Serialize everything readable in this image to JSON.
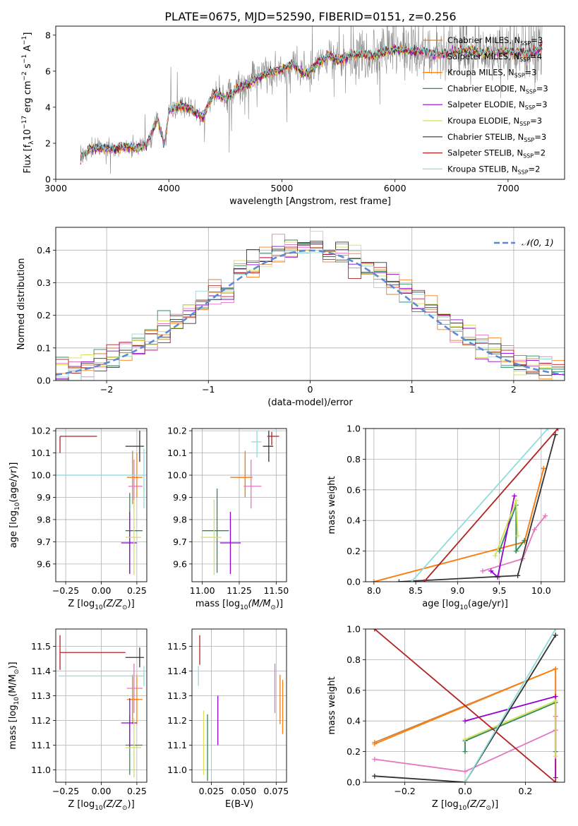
{
  "figure": {
    "title": "PLATE=0675, MJD=52590, FIBERID=0151, z=0.256"
  },
  "colors": [
    "#cd853f",
    "#e377c2",
    "#ff7f0e",
    "#2e8b57",
    "#9400d3",
    "#d4e157",
    "#333333",
    "#b22222",
    "#8fdcdc"
  ],
  "chart_data": [
    {
      "id": "spectrum",
      "type": "line",
      "xlabel": "wavelength [Angstrom, rest frame]",
      "ylabel": "Flux [f",
      "ylabel_sub": "λ",
      "ylabel_rest": "10",
      "ylabel_exp1": "−17",
      "ylabel_tail": " erg cm",
      "ylabel_exp2": "−2",
      "ylabel_s": " s",
      "ylabel_exp3": "−1",
      "ylabel_A": " A",
      "ylabel_exp4": "−1",
      "ylabel_end": "]",
      "xlim": [
        3000,
        7500
      ],
      "ylim": [
        0,
        8.5
      ],
      "xticks": [
        3000,
        4000,
        5000,
        6000,
        7000
      ],
      "yticks": [
        0,
        2,
        4,
        6,
        8
      ],
      "spectrum_anchors": {
        "x": [
          3220,
          3300,
          3400,
          3500,
          3600,
          3700,
          3800,
          3850,
          3900,
          3960,
          4000,
          4100,
          4200,
          4300,
          4400,
          4500,
          4600,
          4700,
          4800,
          4900,
          5000,
          5100,
          5200,
          5300,
          5400,
          5500,
          5600,
          5700,
          5800,
          5900,
          6000,
          6200,
          6400,
          6600,
          6800,
          7000,
          7200,
          7300
        ],
        "y": [
          1.2,
          1.7,
          1.75,
          1.65,
          1.8,
          1.75,
          1.9,
          2.6,
          3.4,
          1.9,
          3.8,
          4.1,
          3.9,
          3.4,
          4.8,
          4.5,
          5.0,
          5.3,
          5.7,
          5.9,
          6.1,
          6.4,
          5.8,
          6.3,
          6.9,
          6.6,
          6.9,
          7.0,
          6.8,
          7.1,
          7.2,
          7.1,
          6.9,
          7.2,
          7.0,
          7.1,
          7.0,
          7.3
        ]
      },
      "legend_loc": "upper-right",
      "legend": [
        {
          "name": "Chabrier MILES, N",
          "sub": "SSP",
          "tail": "=3"
        },
        {
          "name": "Salpeter MILES, N",
          "sub": "SSP",
          "tail": "=4"
        },
        {
          "name": "Kroupa MILES, N",
          "sub": "SSP",
          "tail": "=3"
        },
        {
          "name": "Chabrier ELODIE, N",
          "sub": "SSP",
          "tail": "=3"
        },
        {
          "name": "Salpeter ELODIE, N",
          "sub": "SSP",
          "tail": "=3"
        },
        {
          "name": "Kroupa ELODIE, N",
          "sub": "SSP",
          "tail": "=3"
        },
        {
          "name": "Chabrier STELIB, N",
          "sub": "SSP",
          "tail": "=3"
        },
        {
          "name": "Salpeter STELIB, N",
          "sub": "SSP",
          "tail": "=2"
        },
        {
          "name": "Kroupa STELIB, N",
          "sub": "SSP",
          "tail": "=2"
        }
      ]
    },
    {
      "id": "residuals",
      "type": "histogram",
      "xlabel": "(data-model)/error",
      "ylabel": "Normed distribution",
      "xlim": [
        -2.5,
        2.5
      ],
      "ylim": [
        0,
        0.47
      ],
      "xticks": [
        -2,
        -1,
        0,
        1,
        2
      ],
      "yticks": [
        0.0,
        0.1,
        0.2,
        0.3,
        0.4
      ],
      "grid": true,
      "legend_loc": "upper-right",
      "legend_label": "𝒩(0, 1)",
      "gaussian": {
        "mean": 0,
        "sigma": 1
      },
      "bin_width": 0.125
    },
    {
      "id": "age-vs-Z",
      "type": "errorbar",
      "xlabel": "Z [log",
      "xlabel_sub": "10",
      "xlabel_tail": "(Z/Z",
      "xlabel_sun": "⊙",
      "xlabel_end": ")]",
      "ylabel": "age  [log",
      "ylabel_sub": "10",
      "ylabel_tail": "(age/yr)]",
      "xlim": [
        -0.32,
        0.32
      ],
      "ylim": [
        9.52,
        10.21
      ],
      "xticks": [
        -0.25,
        0.0,
        0.25
      ],
      "yticks": [
        9.6,
        9.7,
        9.8,
        9.9,
        10.0,
        10.1,
        10.2
      ],
      "grid": true,
      "points": [
        {
          "x": 0.22,
          "y": 9.99,
          "xerr": [
            0.04,
            0.04
          ],
          "yerr": [
            0.12,
            0.12
          ]
        },
        {
          "x": 0.23,
          "y": 9.95,
          "xerr": [
            0.04,
            0.06
          ],
          "yerr": [
            0.1,
            0.12
          ]
        },
        {
          "x": 0.25,
          "y": 9.99,
          "xerr": [
            0.05,
            0.04
          ],
          "yerr": [
            0.09,
            0.11
          ]
        },
        {
          "x": 0.2,
          "y": 9.75,
          "xerr": [
            0.03,
            0.09
          ],
          "yerr": [
            0.19,
            0.17
          ]
        },
        {
          "x": 0.2,
          "y": 9.695,
          "xerr": [
            0.06,
            0.05
          ],
          "yerr": [
            0.14,
            0.14
          ]
        },
        {
          "x": 0.23,
          "y": 9.72,
          "xerr": [
            0.06,
            0.05
          ],
          "yerr": [
            0.17,
            0.17
          ]
        },
        {
          "x": 0.27,
          "y": 10.13,
          "xerr": [
            0.1,
            0.03
          ],
          "yerr": [
            0.07,
            0.07
          ]
        },
        {
          "x": -0.29,
          "y": 10.175,
          "xerr": [
            0.0,
            0.26
          ],
          "yerr": [
            0.075,
            0.0
          ]
        },
        {
          "x": 0.3,
          "y": 10.0,
          "xerr": [
            0.65,
            0.0
          ],
          "yerr": [
            0.15,
            0.12
          ]
        }
      ]
    },
    {
      "id": "age-vs-mass",
      "type": "errorbar",
      "xlabel": "mass [log",
      "xlabel_sub": "10",
      "xlabel_tail": "(M/M",
      "xlabel_sun": "⊙",
      "xlabel_end": ")]",
      "xlim": [
        10.93,
        11.57
      ],
      "ylim": [
        9.52,
        10.21
      ],
      "xticks": [
        11.0,
        11.25,
        11.5
      ],
      "yticks": [
        9.6,
        9.7,
        9.8,
        9.9,
        10.0,
        10.1,
        10.2
      ],
      "grid": true,
      "points": [
        {
          "x": 11.29,
          "y": 9.99,
          "xerr": [
            0.1,
            0.05
          ],
          "yerr": [
            0.09,
            0.11
          ]
        },
        {
          "x": 11.33,
          "y": 9.95,
          "xerr": [
            0.05,
            0.07
          ],
          "yerr": [
            0.1,
            0.12
          ]
        },
        {
          "x": 11.29,
          "y": 9.99,
          "xerr": [
            0.06,
            0.04
          ],
          "yerr": [
            0.08,
            0.12
          ]
        },
        {
          "x": 11.1,
          "y": 9.75,
          "xerr": [
            0.1,
            0.08
          ],
          "yerr": [
            0.19,
            0.19
          ]
        },
        {
          "x": 11.19,
          "y": 9.695,
          "xerr": [
            0.07,
            0.07
          ],
          "yerr": [
            0.14,
            0.14
          ]
        },
        {
          "x": 11.08,
          "y": 9.72,
          "xerr": [
            0.09,
            0.05
          ],
          "yerr": [
            0.17,
            0.17
          ]
        },
        {
          "x": 11.45,
          "y": 10.13,
          "xerr": [
            0.04,
            0.03
          ],
          "yerr": [
            0.07,
            0.07
          ]
        },
        {
          "x": 11.47,
          "y": 10.175,
          "xerr": [
            0.03,
            0.05
          ],
          "yerr": [
            0.04,
            0.02
          ]
        },
        {
          "x": 11.37,
          "y": 10.15,
          "xerr": [
            0.04,
            0.03
          ],
          "yerr": [
            0.07,
            0.05
          ]
        }
      ]
    },
    {
      "id": "weight-vs-age",
      "type": "line",
      "xlabel": "age  [log",
      "xlabel_sub": "10",
      "xlabel_tail": "(age/yr)]",
      "ylabel": "mass weight",
      "xlim": [
        7.9,
        10.28
      ],
      "ylim": [
        0,
        1.0
      ],
      "xticks": [
        8.0,
        8.5,
        9.0,
        9.5,
        10.0
      ],
      "yticks": [
        0.0,
        0.2,
        0.4,
        0.6,
        0.8,
        1.0
      ],
      "grid": true,
      "series": [
        {
          "x": [
            8.0,
            9.8,
            10.03
          ],
          "y": [
            0.0,
            0.26,
            0.74
          ]
        },
        {
          "x": [
            9.3,
            9.78,
            9.92,
            10.05
          ],
          "y": [
            0.07,
            0.15,
            0.34,
            0.43
          ]
        },
        {
          "x": [
            8.0,
            9.8,
            10.03
          ],
          "y": [
            0.0,
            0.26,
            0.74
          ]
        },
        {
          "x": [
            9.5,
            9.7,
            9.7,
            9.8
          ],
          "y": [
            0.2,
            0.5,
            0.2,
            0.27
          ]
        },
        {
          "x": [
            9.4,
            9.48,
            9.68
          ],
          "y": [
            0.07,
            0.03,
            0.56
          ]
        },
        {
          "x": [
            9.45,
            9.7,
            9.72
          ],
          "y": [
            0.17,
            0.53,
            0.3
          ]
        },
        {
          "x": [
            8.3,
            9.72,
            10.17
          ],
          "y": [
            0.0,
            0.04,
            0.96
          ]
        },
        {
          "x": [
            8.6,
            10.2
          ],
          "y": [
            0.0,
            1.0
          ]
        },
        {
          "x": [
            8.45,
            10.08
          ],
          "y": [
            0.0,
            1.0
          ]
        }
      ]
    },
    {
      "id": "mass-vs-Z",
      "type": "errorbar",
      "xlabel": "Z [log",
      "xlabel_sub": "10",
      "xlabel_tail": "(Z/Z",
      "xlabel_sun": "⊙",
      "xlabel_end": ")]",
      "ylabel": "mass [log",
      "ylabel_sub": "10",
      "ylabel_tail": "(M/M",
      "ylabel_sun": "⊙",
      "ylabel_end": ")]",
      "xlim": [
        -0.32,
        0.32
      ],
      "ylim": [
        10.95,
        11.57
      ],
      "xticks": [
        -0.25,
        0.0,
        0.25
      ],
      "yticks": [
        11.0,
        11.1,
        11.2,
        11.3,
        11.4,
        11.5
      ],
      "grid": true,
      "points": [
        {
          "x": 0.22,
          "y": 11.285,
          "xerr": [
            0.04,
            0.04
          ],
          "yerr": [
            0.1,
            0.1
          ]
        },
        {
          "x": 0.23,
          "y": 11.33,
          "xerr": [
            0.05,
            0.06
          ],
          "yerr": [
            0.1,
            0.1
          ]
        },
        {
          "x": 0.25,
          "y": 11.285,
          "xerr": [
            0.05,
            0.04
          ],
          "yerr": [
            0.1,
            0.1
          ]
        },
        {
          "x": 0.2,
          "y": 11.1,
          "xerr": [
            0.03,
            0.09
          ],
          "yerr": [
            0.12,
            0.12
          ]
        },
        {
          "x": 0.2,
          "y": 11.19,
          "xerr": [
            0.06,
            0.05
          ],
          "yerr": [
            0.1,
            0.1
          ]
        },
        {
          "x": 0.23,
          "y": 11.09,
          "xerr": [
            0.06,
            0.05
          ],
          "yerr": [
            0.12,
            0.12
          ]
        },
        {
          "x": 0.27,
          "y": 11.455,
          "xerr": [
            0.1,
            0.03
          ],
          "yerr": [
            0.04,
            0.04
          ]
        },
        {
          "x": -0.29,
          "y": 11.475,
          "xerr": [
            0.0,
            0.46
          ],
          "yerr": [
            0.07,
            0.07
          ]
        },
        {
          "x": 0.3,
          "y": 11.38,
          "xerr": [
            0.6,
            0.0
          ],
          "yerr": [
            0.04,
            0.04
          ]
        }
      ]
    },
    {
      "id": "mass-vs-ebv",
      "type": "errorbar",
      "xlabel": "E(B-V)",
      "xlim": [
        0.01,
        0.083
      ],
      "ylim": [
        10.95,
        11.57
      ],
      "xticks": [
        0.025,
        0.05,
        0.075
      ],
      "yticks": [
        11.0,
        11.1,
        11.2,
        11.3,
        11.4,
        11.5
      ],
      "grid": true,
      "points": [
        {
          "x": 0.078,
          "y": 11.285,
          "yerr": [
            0.1,
            0.1
          ]
        },
        {
          "x": 0.074,
          "y": 11.33,
          "yerr": [
            0.1,
            0.1
          ]
        },
        {
          "x": 0.08,
          "y": 11.255,
          "yerr": [
            0.11,
            0.11
          ]
        },
        {
          "x": 0.022,
          "y": 11.095,
          "yerr": [
            0.14,
            0.13
          ]
        },
        {
          "x": 0.03,
          "y": 11.2,
          "yerr": [
            0.1,
            0.1
          ]
        },
        {
          "x": 0.019,
          "y": 11.11,
          "yerr": [
            0.13,
            0.13
          ]
        },
        {
          "x": 0.016,
          "y": 11.455,
          "yerr": [
            0.0,
            0.0
          ]
        },
        {
          "x": 0.016,
          "y": 11.485,
          "yerr": [
            0.06,
            0.06
          ]
        },
        {
          "x": 0.015,
          "y": 11.38,
          "yerr": [
            0.04,
            0.04
          ]
        }
      ]
    },
    {
      "id": "weight-vs-Z",
      "type": "line",
      "xlabel": "Z [log",
      "xlabel_sub": "10",
      "xlabel_tail": "(Z/Z",
      "xlabel_sun": "⊙",
      "xlabel_end": ")]",
      "ylabel": "mass weight",
      "xlim": [
        -0.33,
        0.33
      ],
      "ylim": [
        0,
        1.0
      ],
      "xticks": [
        -0.2,
        0.0,
        0.2
      ],
      "yticks": [
        0.0,
        0.2,
        0.4,
        0.6,
        0.8,
        1.0
      ],
      "grid": true,
      "series": [
        {
          "x": [
            -0.3,
            0.3,
            0.3
          ],
          "y": [
            0.26,
            0.74,
            0.0
          ]
        },
        {
          "x": [
            -0.3,
            0.0,
            0.3,
            0.3
          ],
          "y": [
            0.15,
            0.07,
            0.34,
            0.43
          ]
        },
        {
          "x": [
            -0.3,
            0.3,
            0.3
          ],
          "y": [
            0.25,
            0.74,
            0.0
          ]
        },
        {
          "x": [
            0.0,
            0.0,
            0.3,
            0.3
          ],
          "y": [
            0.2,
            0.27,
            0.52,
            0.2
          ]
        },
        {
          "x": [
            0.0,
            0.3,
            0.3
          ],
          "y": [
            0.4,
            0.56,
            0.03
          ]
        },
        {
          "x": [
            0.0,
            0.3,
            0.3
          ],
          "y": [
            0.28,
            0.53,
            0.17
          ]
        },
        {
          "x": [
            -0.3,
            0.0,
            0.3
          ],
          "y": [
            0.04,
            0.0,
            0.96
          ]
        },
        {
          "x": [
            -0.3,
            0.3
          ],
          "y": [
            1.0,
            0.0
          ]
        },
        {
          "x": [
            0.0,
            0.3
          ],
          "y": [
            0.0,
            1.0
          ]
        }
      ]
    }
  ]
}
